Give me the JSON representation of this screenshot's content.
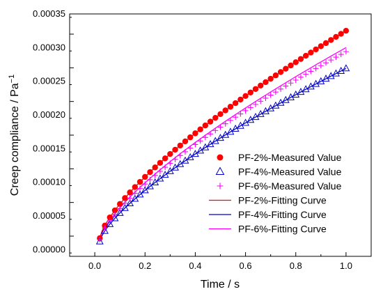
{
  "chart_data": {
    "type": "scatter",
    "title": "",
    "xlabel": "Time / s",
    "ylabel": "Creep compliance / Pa",
    "ylabel_superscript": "−1",
    "xlim": [
      -0.1,
      1.1
    ],
    "ylim": [
      -1e-05,
      0.00035
    ],
    "x_ticks": [
      "0.0",
      "0.2",
      "0.4",
      "0.6",
      "0.8",
      "1.0"
    ],
    "y_ticks": [
      "0.00000",
      "0.00005",
      "0.00010",
      "0.00015",
      "0.00020",
      "0.00025",
      "0.00030",
      "0.00035"
    ],
    "grid": false,
    "legend_position": "bottom-right",
    "measured_series": [
      {
        "name": "PF-2%-Measured Value",
        "marker": "filled-circle",
        "color": "#ff0000",
        "x0": 0.02,
        "dx": 0.02,
        "n": 50,
        "y_start": 1.7e-05,
        "y_end": 0.000325
      },
      {
        "name": "PF-4%-Measured Value",
        "marker": "open-triangle",
        "color": "#0000cc",
        "x0": 0.02,
        "dx": 0.02,
        "n": 50,
        "y_start": 1.2e-05,
        "y_end": 0.000269
      },
      {
        "name": "PF-6%-Measured Value",
        "marker": "plus",
        "color": "#ff00ff",
        "x0": 0.02,
        "dx": 0.02,
        "n": 50,
        "y_start": 1.5e-05,
        "y_end": 0.000294
      }
    ],
    "fit_series": [
      {
        "name": "PF-2%-Fitting Curve",
        "color": "#ff0000",
        "y_start": 1.7e-05,
        "y_end": 0.000325
      },
      {
        "name": "PF-4%-Fitting Curve",
        "color": "#0000cc",
        "y_start": 1.2e-05,
        "y_end": 0.000269
      },
      {
        "name": "PF-6%-Fitting Curve",
        "color": "#ff00ff",
        "y_start": 1.5e-05,
        "y_end": 0.0003
      }
    ],
    "curve_exponent": 0.72
  }
}
